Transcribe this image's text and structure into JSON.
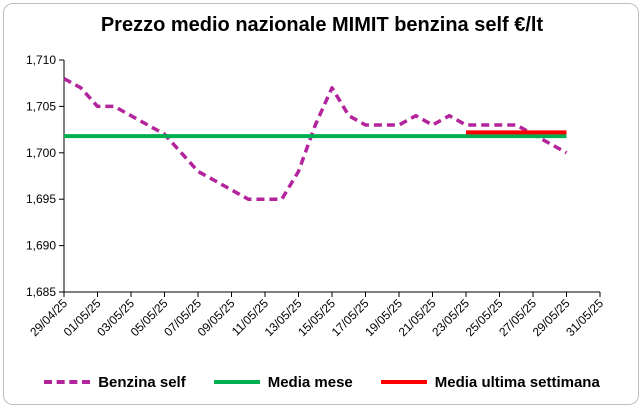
{
  "chart_data": {
    "type": "line",
    "title": "Prezzo medio nazionale MIMIT benzina self €/lt",
    "x_categories": [
      "29/04/25",
      "01/05/25",
      "03/05/25",
      "05/05/25",
      "07/05/25",
      "09/05/25",
      "11/05/25",
      "13/05/25",
      "15/05/25",
      "17/05/25",
      "19/05/25",
      "21/05/25",
      "23/05/25",
      "25/05/25",
      "27/05/25",
      "29/05/25",
      "31/05/25"
    ],
    "ylim": [
      1.685,
      1.71
    ],
    "y_ticks": [
      "1,685",
      "1,690",
      "1,695",
      "1,700",
      "1,705",
      "1,710"
    ],
    "y_tick_values": [
      1.685,
      1.69,
      1.695,
      1.7,
      1.705,
      1.71
    ],
    "grid": false,
    "legend_position": "bottom",
    "series": [
      {
        "name": "Benzina self",
        "color": "#b3249c",
        "style": "dashed",
        "x": [
          "29/04/25",
          "30/04/25",
          "01/05/25",
          "02/05/25",
          "03/05/25",
          "04/05/25",
          "05/05/25",
          "06/05/25",
          "07/05/25",
          "08/05/25",
          "09/05/25",
          "10/05/25",
          "11/05/25",
          "12/05/25",
          "13/05/25",
          "14/05/25",
          "15/05/25",
          "16/05/25",
          "17/05/25",
          "18/05/25",
          "19/05/25",
          "20/05/25",
          "21/05/25",
          "22/05/25",
          "23/05/25",
          "24/05/25",
          "25/05/25",
          "26/05/25",
          "27/05/25",
          "28/05/25",
          "29/05/25"
        ],
        "values": [
          1.708,
          1.707,
          1.705,
          1.705,
          1.704,
          1.703,
          1.702,
          1.7,
          1.698,
          1.697,
          1.696,
          1.695,
          1.695,
          1.695,
          1.698,
          1.703,
          1.707,
          1.704,
          1.703,
          1.703,
          1.703,
          1.704,
          1.703,
          1.704,
          1.703,
          1.703,
          1.703,
          1.703,
          1.702,
          1.701,
          1.7
        ]
      },
      {
        "name": "Media mese",
        "color": "#00b050",
        "style": "solid",
        "x": [
          "29/04/25",
          "29/05/25"
        ],
        "values": [
          1.7018,
          1.7018
        ]
      },
      {
        "name": "Media ultima settimana",
        "color": "#ff0000",
        "style": "solid",
        "x": [
          "23/05/25",
          "29/05/25"
        ],
        "values": [
          1.7022,
          1.7022
        ]
      }
    ]
  }
}
